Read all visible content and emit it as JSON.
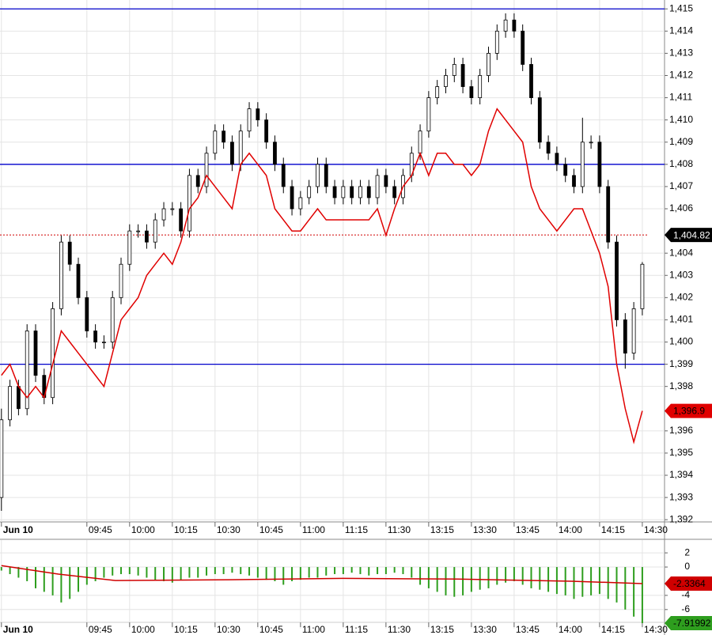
{
  "chart_data": [
    {
      "type": "candlestick",
      "x": [
        0,
        3,
        6,
        9,
        12,
        15,
        18,
        21,
        24,
        27,
        30,
        33,
        36,
        39,
        42,
        45,
        48,
        51,
        54,
        57,
        60,
        63,
        66,
        69,
        72,
        75,
        78,
        81,
        84,
        87,
        90,
        93,
        96,
        99,
        102,
        105,
        108,
        111,
        114,
        117,
        120,
        123,
        126,
        129,
        132,
        135,
        138,
        141,
        144,
        147,
        150,
        153,
        156,
        159,
        162,
        165,
        168,
        171,
        174,
        177,
        180,
        183,
        186,
        189,
        192,
        195,
        198,
        201,
        204,
        207,
        210,
        213,
        216,
        219,
        222,
        225
      ],
      "open": [
        1393,
        1396.5,
        1398,
        1397,
        1400.5,
        1398.5,
        1397.5,
        1401.5,
        1404.5,
        1403.5,
        1402,
        1400.5,
        1400,
        1400,
        1402,
        1403.5,
        1405,
        1405,
        1404.5,
        1405.5,
        1406,
        1406,
        1405,
        1407.5,
        1407,
        1408.5,
        1409.5,
        1409,
        1408,
        1409.5,
        1410.5,
        1410,
        1409,
        1408,
        1407,
        1406,
        1406.5,
        1407,
        1408,
        1407,
        1406.5,
        1407,
        1406.5,
        1407,
        1406.5,
        1407.5,
        1407,
        1406.5,
        1407.5,
        1408.5,
        1409.5,
        1411,
        1411.5,
        1412,
        1412.5,
        1411.5,
        1411,
        1412,
        1413,
        1414,
        1414.5,
        1414,
        1412.5,
        1411,
        1409,
        1408.5,
        1408,
        1407.5,
        1407,
        1409,
        1409,
        1407,
        1404.5,
        1401,
        1399.5,
        1401.5
      ],
      "high": [
        1397,
        1398.3,
        1398.3,
        1400.8,
        1400.8,
        1398.8,
        1401.8,
        1404.8,
        1404.8,
        1403.8,
        1402.3,
        1400.8,
        1400.3,
        1402.3,
        1403.8,
        1405.3,
        1405.3,
        1405.3,
        1405.8,
        1406.3,
        1406.3,
        1406.3,
        1407.8,
        1407.8,
        1408.8,
        1409.8,
        1409.8,
        1409.3,
        1409.8,
        1410.8,
        1410.8,
        1410.3,
        1409.3,
        1408.3,
        1407.3,
        1406.8,
        1407.3,
        1408.3,
        1408.3,
        1407.3,
        1407.3,
        1407.3,
        1407.3,
        1407.3,
        1407.8,
        1407.8,
        1407.3,
        1407.8,
        1408.8,
        1409.8,
        1411.3,
        1411.8,
        1412.3,
        1412.8,
        1412.8,
        1411.8,
        1412.3,
        1413.3,
        1414.3,
        1414.8,
        1414.8,
        1414.3,
        1412.8,
        1411.3,
        1409.3,
        1408.8,
        1408.3,
        1407.8,
        1410.1,
        1409.3,
        1409.3,
        1407.3,
        1404.8,
        1401.3,
        1401.8,
        1403.6
      ],
      "low": [
        1392.4,
        1396.2,
        1396.7,
        1396.7,
        1398.2,
        1397.2,
        1397.2,
        1401.2,
        1403.2,
        1401.7,
        1400.2,
        1399.7,
        1399.7,
        1399.7,
        1401.7,
        1403.2,
        1404.7,
        1404.2,
        1404.2,
        1405.2,
        1405.7,
        1404.7,
        1404.7,
        1406.7,
        1406.7,
        1408.2,
        1408.7,
        1407.7,
        1407.7,
        1409.2,
        1409.7,
        1408.7,
        1407.7,
        1406.7,
        1405.7,
        1405.7,
        1406.2,
        1406.7,
        1406.7,
        1406.2,
        1406.2,
        1406.2,
        1406.2,
        1406.2,
        1406.2,
        1406.7,
        1406.2,
        1406.2,
        1407.2,
        1408.2,
        1409.2,
        1410.7,
        1411.2,
        1411.7,
        1411.2,
        1410.7,
        1410.7,
        1411.7,
        1412.7,
        1413.7,
        1413.7,
        1412.2,
        1410.7,
        1408.7,
        1408.2,
        1407.7,
        1407.2,
        1406.7,
        1406.7,
        1408.7,
        1406.7,
        1404.2,
        1400.7,
        1398.8,
        1399.2,
        1401.2
      ],
      "close": [
        1396.5,
        1398,
        1397,
        1400.5,
        1398.5,
        1397.5,
        1401.5,
        1404.5,
        1403.5,
        1402,
        1400.5,
        1400,
        1400,
        1402,
        1403.5,
        1405,
        1405,
        1404.5,
        1405.5,
        1406,
        1406,
        1405,
        1407.5,
        1407,
        1408.5,
        1409.5,
        1409,
        1408,
        1409.5,
        1410.5,
        1410,
        1409,
        1408,
        1407,
        1406,
        1406.5,
        1407,
        1408,
        1407,
        1406.5,
        1407,
        1406.5,
        1407,
        1406.5,
        1407.5,
        1407,
        1406.5,
        1407.5,
        1408.5,
        1409.5,
        1411,
        1411.5,
        1412,
        1412.5,
        1411.5,
        1411,
        1412,
        1413,
        1414,
        1414.5,
        1414,
        1412.5,
        1411,
        1409,
        1408.5,
        1408,
        1407.5,
        1407,
        1409,
        1409,
        1407,
        1404.5,
        1401,
        1399.5,
        1401.5,
        1403.5
      ],
      "series": [
        {
          "color": "#e00000",
          "values": [
            1398.5,
            1399,
            1398,
            1397.5,
            1398,
            1397.5,
            1399,
            1400.5,
            1400,
            1399.5,
            1399,
            1398.5,
            1398,
            1399.5,
            1401,
            1401.5,
            1402,
            1403,
            1403.5,
            1404,
            1403.5,
            1404.5,
            1406,
            1406.5,
            1407.5,
            1407,
            1406.5,
            1406,
            1408,
            1408.5,
            1408,
            1407.5,
            1406,
            1405.5,
            1405,
            1405,
            1405.5,
            1406,
            1405.5,
            1405.5,
            1405.5,
            1405.5,
            1405.5,
            1405.5,
            1406,
            1404.8,
            1406,
            1407,
            1407.5,
            1408.5,
            1407.5,
            1408.5,
            1408.5,
            1408,
            1408,
            1407.5,
            1408,
            1409.5,
            1410.5,
            1410,
            1409.5,
            1409,
            1407,
            1406,
            1405.5,
            1405,
            1405.5,
            1406,
            1406,
            1405,
            1404,
            1402.5,
            1399,
            1397,
            1395.5,
            1396.9
          ],
          "last_label": "1,396.9"
        }
      ],
      "hlines": [
        1415,
        1408,
        1399
      ],
      "hline_color": "#0000cc",
      "reference": {
        "value": 1404.82,
        "label": "1,404.82"
      },
      "xlim": [
        -0.5,
        232.8
      ],
      "ylim": [
        1391.9,
        1415.4
      ],
      "xticks": [
        {
          "value": 0,
          "label": "Jun 10"
        },
        {
          "value": 30,
          "label": "09:45"
        },
        {
          "value": 45,
          "label": "10:00"
        },
        {
          "value": 60,
          "label": "10:15"
        },
        {
          "value": 75,
          "label": "10:30"
        },
        {
          "value": 90,
          "label": "10:45"
        },
        {
          "value": 105,
          "label": "11:00"
        },
        {
          "value": 120,
          "label": "11:15"
        },
        {
          "value": 135,
          "label": "11:30"
        },
        {
          "value": 150,
          "label": "13:15"
        },
        {
          "value": 165,
          "label": "13:30"
        },
        {
          "value": 180,
          "label": "13:45"
        },
        {
          "value": 195,
          "label": "14:00"
        },
        {
          "value": 210,
          "label": "14:15"
        },
        {
          "value": 225,
          "label": "14:30"
        }
      ],
      "yticks": [
        {
          "value": 1392,
          "label": "1,392"
        },
        {
          "value": 1393,
          "label": "1,393"
        },
        {
          "value": 1394,
          "label": "1,394"
        },
        {
          "value": 1395,
          "label": "1,395"
        },
        {
          "value": 1396,
          "label": "1,396"
        },
        {
          "value": 1398,
          "label": "1,398"
        },
        {
          "value": 1399,
          "label": "1,399"
        },
        {
          "value": 1400,
          "label": "1,400"
        },
        {
          "value": 1401,
          "label": "1,401"
        },
        {
          "value": 1402,
          "label": "1,402"
        },
        {
          "value": 1403,
          "label": "1,403"
        },
        {
          "value": 1404,
          "label": "1,404"
        },
        {
          "value": 1406,
          "label": "1,406"
        },
        {
          "value": 1407,
          "label": "1,407"
        },
        {
          "value": 1408,
          "label": "1,408"
        },
        {
          "value": 1409,
          "label": "1,409"
        },
        {
          "value": 1410,
          "label": "1,410"
        },
        {
          "value": 1411,
          "label": "1,411"
        },
        {
          "value": 1412,
          "label": "1,412"
        },
        {
          "value": 1413,
          "label": "1,413"
        },
        {
          "value": 1414,
          "label": "1,414"
        },
        {
          "value": 1415,
          "label": "1,415"
        }
      ],
      "grid": true
    },
    {
      "type": "bar",
      "x": [
        0,
        3,
        6,
        9,
        12,
        15,
        18,
        21,
        24,
        27,
        30,
        33,
        36,
        39,
        42,
        45,
        48,
        51,
        54,
        57,
        60,
        63,
        66,
        69,
        72,
        75,
        78,
        81,
        84,
        87,
        90,
        93,
        96,
        99,
        102,
        105,
        108,
        111,
        114,
        117,
        120,
        123,
        126,
        129,
        132,
        135,
        138,
        141,
        144,
        147,
        150,
        153,
        156,
        159,
        162,
        165,
        168,
        171,
        174,
        177,
        180,
        183,
        186,
        189,
        192,
        195,
        198,
        201,
        204,
        207,
        210,
        213,
        216,
        219,
        222,
        225
      ],
      "series": [
        {
          "color": "#2e9e1e",
          "values": [
            -0.5,
            -1,
            -1.5,
            -2,
            -3,
            -3.5,
            -4,
            -5,
            -4.5,
            -3.5,
            -2.5,
            -2,
            -1.5,
            -1.2,
            -1,
            -1,
            -1.2,
            -1.5,
            -1.8,
            -2,
            -2.2,
            -1.8,
            -1.5,
            -1.5,
            -1.2,
            -1,
            -1,
            -0.8,
            -1,
            -1.2,
            -1.5,
            -1.8,
            -2,
            -2.5,
            -2,
            -1.8,
            -1.5,
            -1.5,
            -1.2,
            -1,
            -1,
            -0.8,
            -1,
            -1.2,
            -1,
            -1,
            -0.8,
            -1,
            -1.5,
            -2.5,
            -3,
            -3.5,
            -4,
            -4.2,
            -4,
            -3.5,
            -3.2,
            -3,
            -2.5,
            -2.2,
            -2,
            -2.5,
            -3,
            -3.2,
            -3.5,
            -3.8,
            -4,
            -4.5,
            -4.2,
            -4,
            -3.8,
            -4.5,
            -5,
            -6,
            -7,
            -7.91992
          ],
          "last_label": "-7.91992"
        },
        {
          "color": "#d00000",
          "x": [
            0,
            20,
            40,
            80,
            120,
            160,
            200,
            225
          ],
          "values": [
            0.2,
            -1,
            -1.9,
            -1.8,
            -1.6,
            -1.7,
            -2,
            -2.3364
          ],
          "last_label": "-2.3364"
        }
      ],
      "xlim": [
        -0.5,
        232.8
      ],
      "ylim": [
        -8.7,
        3.8
      ],
      "xticks": [
        {
          "value": 0,
          "label": "Jun 10"
        },
        {
          "value": 30,
          "label": "09:45"
        },
        {
          "value": 45,
          "label": "10:00"
        },
        {
          "value": 60,
          "label": "10:15"
        },
        {
          "value": 75,
          "label": "10:30"
        },
        {
          "value": 90,
          "label": "10:45"
        },
        {
          "value": 105,
          "label": "11:00"
        },
        {
          "value": 120,
          "label": "11:15"
        },
        {
          "value": 135,
          "label": "11:30"
        },
        {
          "value": 150,
          "label": "13:15"
        },
        {
          "value": 165,
          "label": "13:30"
        },
        {
          "value": 180,
          "label": "13:45"
        },
        {
          "value": 195,
          "label": "14:00"
        },
        {
          "value": 210,
          "label": "14:15"
        },
        {
          "value": 225,
          "label": "14:30"
        }
      ],
      "yticks": [
        2,
        0,
        -4,
        -6
      ],
      "grid": true
    }
  ]
}
